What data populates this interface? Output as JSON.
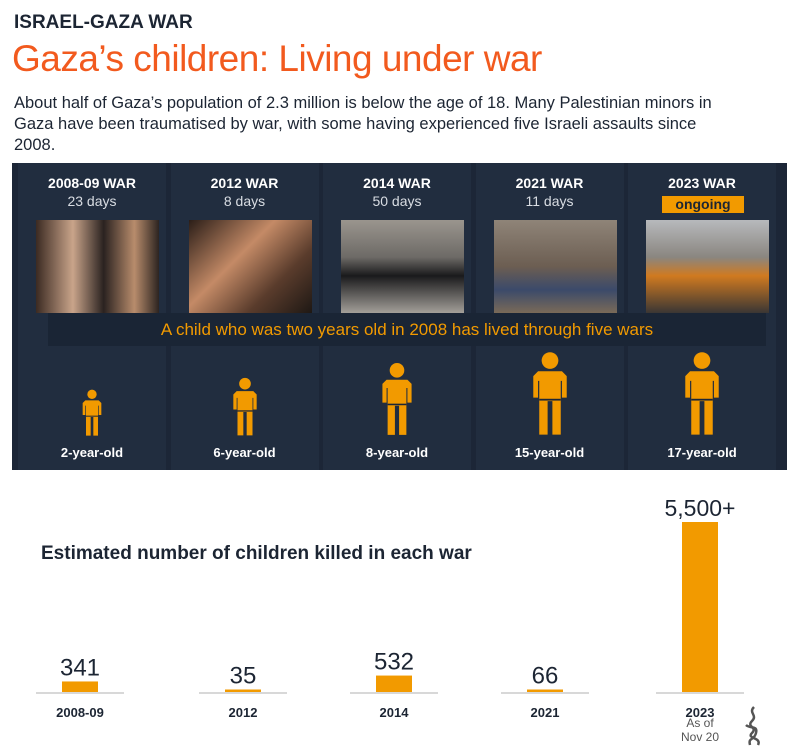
{
  "header": {
    "kicker": "ISRAEL-GAZA WAR",
    "title": "Gaza’s children: Living under war",
    "intro": "About half of Gaza’s population of 2.3 million is below the age of 18. Many Palestinian minors in Gaza have been traumatised by war, with some having experienced five Israeli assaults since 2008."
  },
  "wars": [
    {
      "label": "2008-09 WAR",
      "duration": "23 days",
      "age": "2-year-old"
    },
    {
      "label": "2012 WAR",
      "duration": "8 days",
      "age": "6-year-old"
    },
    {
      "label": "2014 WAR",
      "duration": "50 days",
      "age": "8-year-old"
    },
    {
      "label": "2021 WAR",
      "duration": "11 days",
      "age": "15-year-old"
    },
    {
      "label": "2023 WAR",
      "duration": "ongoing",
      "age": "17-year-old"
    }
  ],
  "banner": "A child who was two years old in 2008 has lived through five wars",
  "colors": {
    "accent": "#f29a00",
    "title": "#f25a1e",
    "panel": "#1c2637"
  },
  "chart_data": {
    "type": "bar",
    "title": "Estimated number of children killed in each war",
    "categories": [
      "2008-09",
      "2012",
      "2014",
      "2021",
      "2023"
    ],
    "values": [
      341,
      35,
      532,
      66,
      5500
    ],
    "value_labels": [
      "341",
      "35",
      "532",
      "66",
      "5,500+"
    ],
    "notes": {
      "2023": "As of Nov 20"
    },
    "grid": false
  }
}
